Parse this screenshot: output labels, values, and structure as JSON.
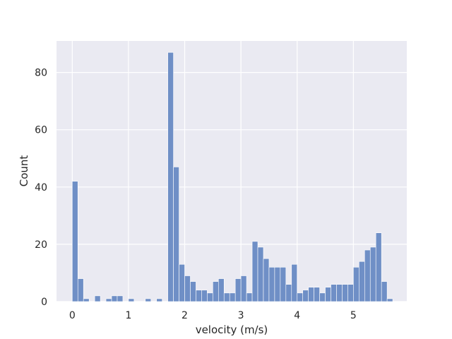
{
  "chart_data": {
    "type": "bar",
    "style": "histogram",
    "xlabel": "velocity (m/s)",
    "ylabel": "Count",
    "xlim": [
      -0.28,
      5.95
    ],
    "ylim": [
      0,
      91
    ],
    "xticks": [
      0,
      1,
      2,
      3,
      4,
      5
    ],
    "yticks": [
      0,
      20,
      40,
      60,
      80
    ],
    "grid": true,
    "bin_width": 0.1,
    "bin_start": 0.0,
    "values": [
      42,
      8,
      1,
      0,
      2,
      0,
      1,
      2,
      2,
      0,
      1,
      0,
      0,
      1,
      0,
      1,
      0,
      87,
      47,
      13,
      9,
      7,
      4,
      4,
      3,
      7,
      8,
      3,
      3,
      8,
      9,
      3,
      21,
      19,
      15,
      12,
      12,
      12,
      6,
      13,
      3,
      4,
      5,
      5,
      3,
      5,
      6,
      6,
      6,
      6,
      12,
      14,
      18,
      19,
      24,
      7,
      1
    ],
    "colors": {
      "bar": "#6f8fc6",
      "background": "#eaeaf2",
      "grid": "#ffffff"
    }
  }
}
